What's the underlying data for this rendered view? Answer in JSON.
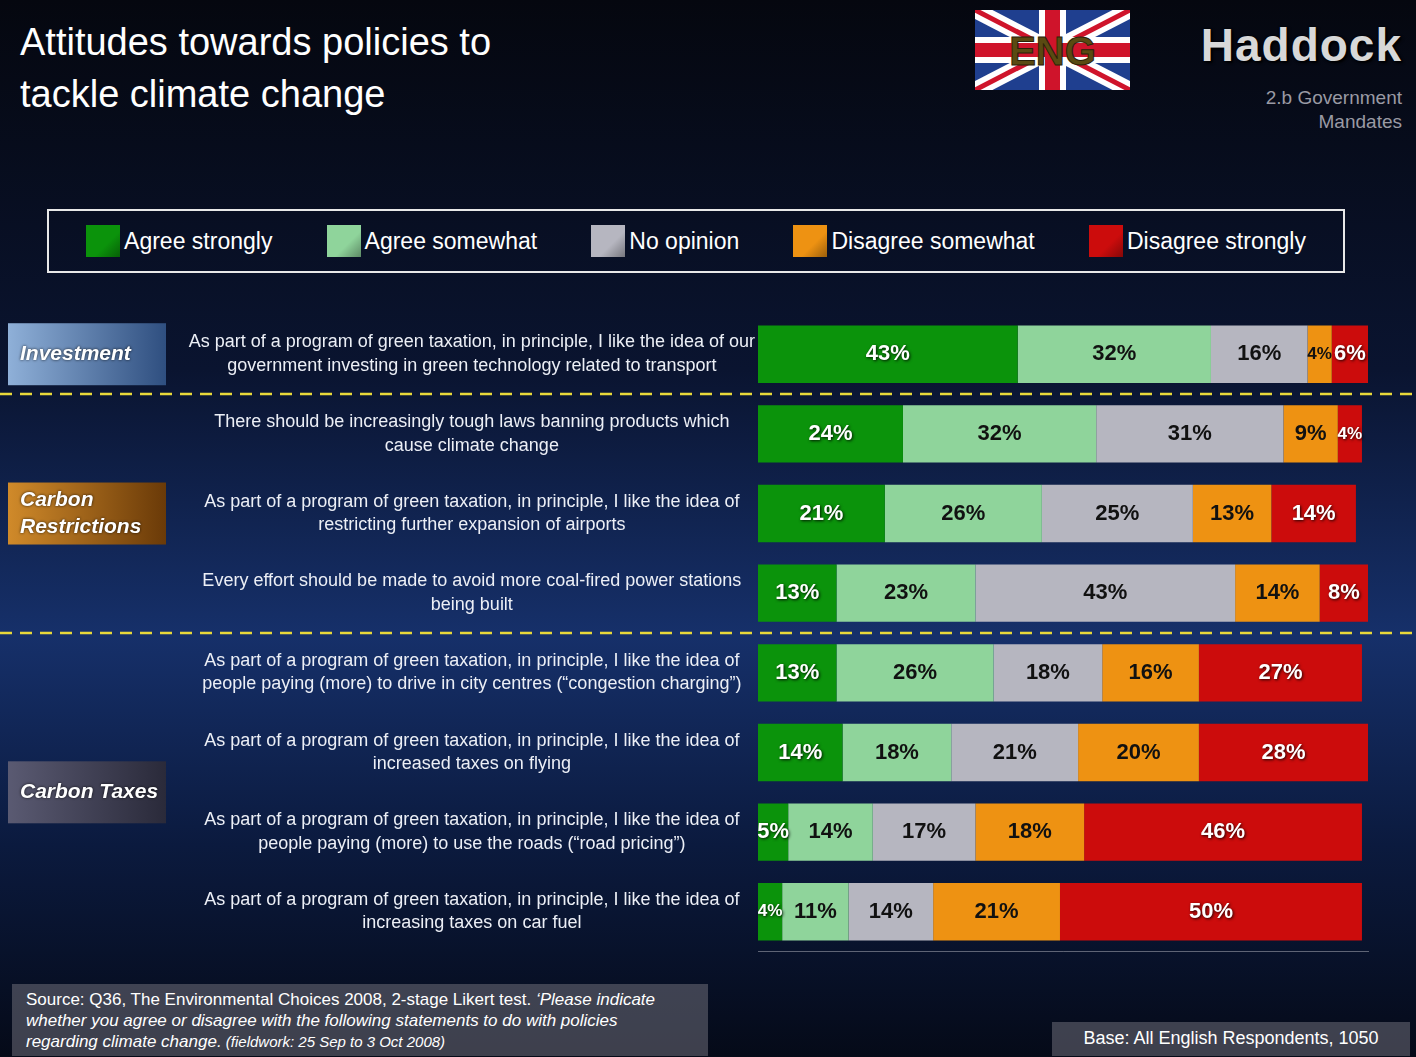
{
  "chart_data": {
    "type": "bar",
    "title": "Attitudes towards policies to tackle climate change",
    "flag_label": "ENG",
    "brand": "Haddock",
    "section": "2.b Government Mandates",
    "orientation": "horizontal",
    "stacked": true,
    "data_labels": true,
    "legend": "top",
    "tick_labels": "y",
    "categories": [
      "As part of a program of green taxation, in principle, I like the idea of our government investing in green technology related to transport",
      "There should be increasingly tough laws banning products which cause climate change",
      "As part of a program of green taxation, in principle, I like the idea of restricting further expansion of airports",
      "Every effort should be made to avoid more coal-fired power stations being built",
      "As part of a program of green taxation, in principle, I like the idea of people paying (more) to drive in city centres (“congestion charging”)",
      "As part of a program of green taxation, in principle, I like the idea of increased taxes on flying",
      "As part of a program of green taxation, in principle, I like the idea of people paying (more) to use the roads (“road pricing”)",
      "As part of a program of green taxation, in principle, I like the idea of increasing taxes on car fuel"
    ],
    "groups": [
      {
        "name": "Investment",
        "size": 1
      },
      {
        "name": "Carbon Restrictions",
        "size": 3
      },
      {
        "name": "Carbon Taxes",
        "size": 4
      }
    ],
    "series": [
      {
        "name": "Agree strongly",
        "color": "#0b930b",
        "values": [
          43,
          24,
          21,
          13,
          13,
          14,
          5,
          4
        ],
        "value_labels": [
          "43%",
          "24%",
          "21%",
          "13%",
          "13%",
          "14%",
          "5%",
          "4%"
        ]
      },
      {
        "name": "Agree somewhat",
        "color": "#8fd49b",
        "values": [
          32,
          32,
          26,
          23,
          26,
          18,
          14,
          11
        ],
        "value_labels": [
          "32%",
          "32%",
          "26%",
          "23%",
          "26%",
          "18%",
          "14%",
          "11%"
        ]
      },
      {
        "name": "No opinion",
        "color": "#b6b6c0",
        "values": [
          16,
          31,
          25,
          43,
          18,
          21,
          17,
          14
        ],
        "value_labels": [
          "16%",
          "31%",
          "25%",
          "43%",
          "18%",
          "21%",
          "17%",
          "14%"
        ]
      },
      {
        "name": "Disagree somewhat",
        "color": "#ee9212",
        "values": [
          4,
          9,
          13,
          14,
          16,
          20,
          18,
          21
        ],
        "value_labels": [
          "4%",
          "9%",
          "13%",
          "14%",
          "16%",
          "20%",
          "18%",
          "21%"
        ]
      },
      {
        "name": "Disagree strongly",
        "color": "#cc0c0c",
        "values": [
          6,
          4,
          14,
          8,
          27,
          28,
          46,
          50
        ],
        "value_labels": [
          "6%",
          "4%",
          "14%",
          "8%",
          "27%",
          "28%",
          "46%",
          "50%"
        ]
      }
    ],
    "xlim": [
      0,
      101
    ],
    "grid": false,
    "source": [
      "Source: Q36, The Environmental Choices 2008, 2-stage Likert test. ",
      "‘Please indicate whether you agree or disagree with the following statements to do with policies regarding climate change.",
      " (fieldwork: 25 Sep to 3 Oct 2008)"
    ],
    "base": "Base: All English Respondents, 1050"
  }
}
